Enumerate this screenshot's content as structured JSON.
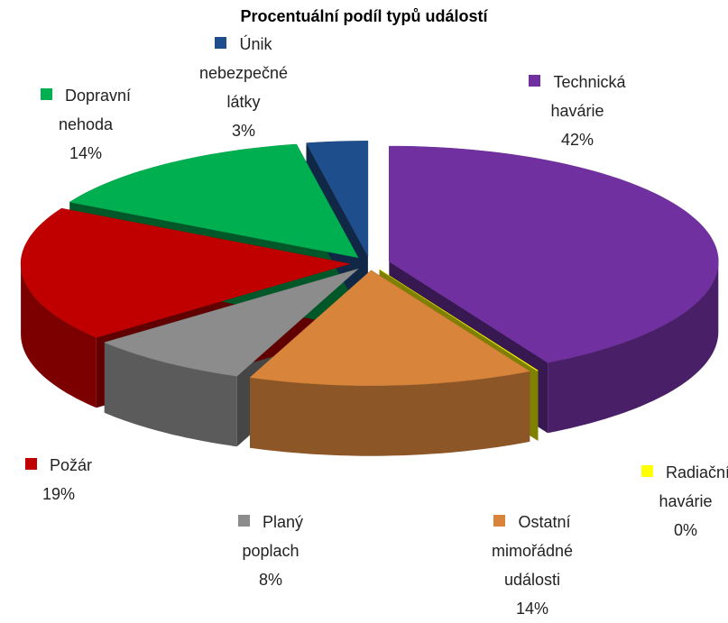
{
  "chart_data": {
    "type": "pie",
    "title": "Procentuální podíl typů událostí",
    "categories": [
      "Technická havárie",
      "Radiační havárie",
      "Ostatní mimořádné události",
      "Planý poplach",
      "Požár",
      "Dopravní nehoda",
      "Únik nebezpečné látky"
    ],
    "values": [
      42,
      0,
      14,
      8,
      19,
      14,
      3
    ],
    "value_labels": [
      "42%",
      "0%",
      "14%",
      "8%",
      "19%",
      "14%",
      "3%"
    ],
    "colors": [
      "#7030a0",
      "#ffff00",
      "#d9843b",
      "#8c8c8c",
      "#c00000",
      "#00b050",
      "#1f4e8c"
    ]
  }
}
